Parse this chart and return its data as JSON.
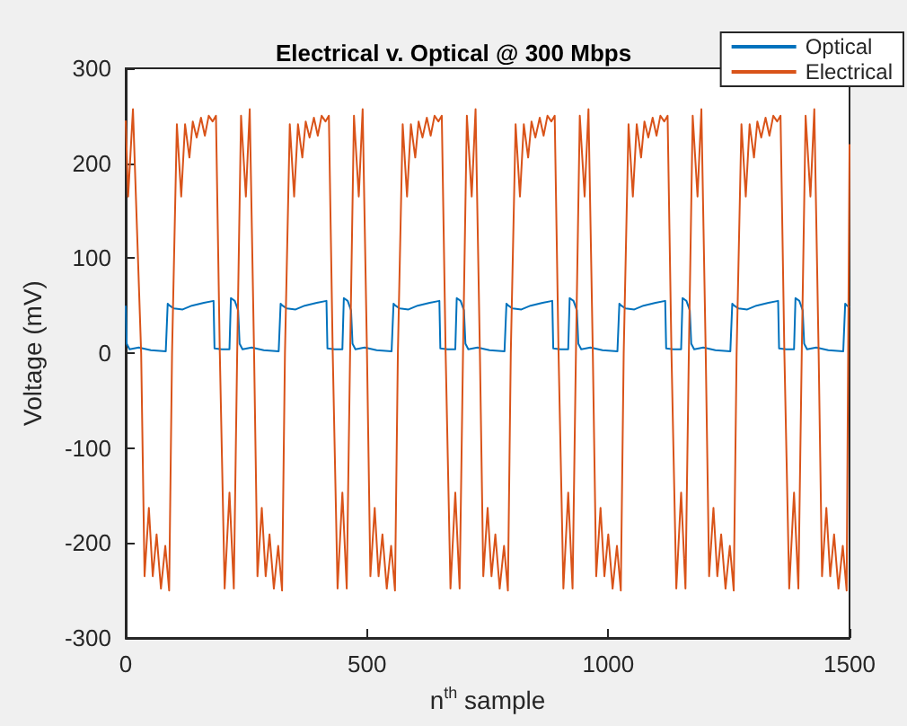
{
  "chart_data": {
    "type": "line",
    "title": "Electrical v. Optical @ 300 Mbps",
    "xlabel": "n$^{th}$ sample",
    "ylabel": "Voltage (mV)",
    "xlim": [
      0,
      1500
    ],
    "xticks": [
      0,
      500,
      1000,
      1500
    ],
    "ylim": [
      -300,
      300
    ],
    "yticks": [
      -300,
      -200,
      -100,
      0,
      100,
      200,
      300
    ],
    "grid": false,
    "legend": "top right",
    "series": [
      {
        "name": "Optical",
        "color": "#0072bd",
        "x": [
          0,
          2,
          8,
          27,
          52,
          83,
          87,
          91,
          100,
          118,
          137,
          162,
          182,
          184,
          199,
          215,
          218,
          226,
          233,
          236,
          242,
          261,
          286,
          317,
          321,
          325,
          334,
          352,
          371,
          396,
          416,
          418,
          433,
          449,
          452,
          460,
          467,
          470,
          476,
          495,
          520,
          551,
          555,
          559,
          568,
          586,
          605,
          630,
          650,
          652,
          667,
          683,
          686,
          694,
          701,
          704,
          710,
          729,
          754,
          785,
          789,
          793,
          802,
          820,
          839,
          864,
          884,
          886,
          901,
          917,
          920,
          928,
          935,
          938,
          944,
          963,
          988,
          1019,
          1023,
          1027,
          1036,
          1054,
          1073,
          1098,
          1118,
          1120,
          1135,
          1151,
          1154,
          1162,
          1169,
          1172,
          1178,
          1197,
          1222,
          1253,
          1257,
          1261,
          1270,
          1288,
          1307,
          1332,
          1352,
          1354,
          1369,
          1385,
          1388,
          1396,
          1403,
          1406,
          1412,
          1431,
          1456,
          1487,
          1491,
          1495,
          1500
        ],
        "values": [
          50,
          10,
          4,
          6,
          3,
          2,
          52,
          50,
          47,
          46,
          50,
          53,
          55,
          5,
          4,
          4,
          58,
          55,
          45,
          10,
          4,
          6,
          3,
          2,
          52,
          50,
          47,
          46,
          50,
          53,
          55,
          5,
          4,
          4,
          58,
          55,
          45,
          10,
          4,
          6,
          3,
          2,
          52,
          50,
          47,
          46,
          50,
          53,
          55,
          5,
          4,
          4,
          58,
          55,
          45,
          10,
          4,
          6,
          3,
          2,
          52,
          50,
          47,
          46,
          50,
          53,
          55,
          5,
          4,
          4,
          58,
          55,
          45,
          10,
          4,
          6,
          3,
          2,
          52,
          50,
          47,
          46,
          50,
          53,
          55,
          5,
          4,
          4,
          58,
          55,
          45,
          10,
          4,
          6,
          3,
          2,
          52,
          50,
          47,
          46,
          50,
          53,
          55,
          5,
          4,
          4,
          58,
          55,
          45,
          10,
          4,
          6,
          3,
          2,
          52,
          50,
          48
        ]
      },
      {
        "name": "Electrical",
        "color": "#d95319",
        "x": [
          0,
          5,
          15,
          32,
          39,
          48,
          56,
          64,
          73,
          82,
          90,
          96,
          106,
          115,
          123,
          132,
          139,
          147,
          156,
          164,
          172,
          180,
          187,
          195,
          205,
          215,
          224,
          231,
          239,
          249,
          257,
          266,
          273,
          282,
          290,
          298,
          307,
          316,
          324,
          330,
          340,
          349,
          357,
          366,
          373,
          381,
          390,
          398,
          406,
          414,
          421,
          429,
          439,
          449,
          458,
          465,
          473,
          483,
          491,
          500,
          507,
          516,
          524,
          532,
          541,
          550,
          558,
          564,
          574,
          583,
          591,
          600,
          607,
          615,
          624,
          632,
          640,
          648,
          655,
          663,
          673,
          683,
          692,
          699,
          707,
          717,
          725,
          734,
          741,
          750,
          758,
          766,
          775,
          784,
          792,
          798,
          808,
          817,
          825,
          834,
          841,
          849,
          858,
          866,
          874,
          882,
          889,
          897,
          907,
          917,
          926,
          933,
          941,
          951,
          959,
          968,
          975,
          984,
          992,
          1000,
          1009,
          1018,
          1026,
          1032,
          1042,
          1051,
          1059,
          1068,
          1075,
          1083,
          1092,
          1100,
          1108,
          1116,
          1123,
          1131,
          1141,
          1151,
          1160,
          1167,
          1175,
          1185,
          1193,
          1202,
          1209,
          1218,
          1226,
          1234,
          1243,
          1252,
          1260,
          1266,
          1276,
          1285,
          1293,
          1302,
          1309,
          1317,
          1326,
          1334,
          1342,
          1350,
          1357,
          1365,
          1375,
          1385,
          1394,
          1401,
          1409,
          1419,
          1427,
          1436,
          1443,
          1452,
          1460,
          1468,
          1477,
          1486,
          1494,
          1500
        ],
        "values": [
          245,
          165,
          257,
          0,
          -235,
          -163,
          -235,
          -191,
          -248,
          -203,
          -250,
          0,
          241,
          165,
          241,
          206,
          244,
          227,
          248,
          229,
          250,
          244,
          250,
          0,
          -248,
          -147,
          -248,
          0,
          250,
          165,
          257,
          0,
          -235,
          -163,
          -235,
          -191,
          -248,
          -203,
          -250,
          0,
          241,
          165,
          241,
          206,
          244,
          227,
          248,
          229,
          250,
          244,
          250,
          0,
          -248,
          -147,
          -248,
          0,
          250,
          165,
          257,
          0,
          -235,
          -163,
          -235,
          -191,
          -248,
          -203,
          -250,
          0,
          241,
          165,
          241,
          206,
          244,
          227,
          248,
          229,
          250,
          244,
          250,
          0,
          -248,
          -147,
          -248,
          0,
          250,
          165,
          257,
          0,
          -235,
          -163,
          -235,
          -191,
          -248,
          -203,
          -250,
          0,
          241,
          165,
          241,
          206,
          244,
          227,
          248,
          229,
          250,
          244,
          250,
          0,
          -248,
          -147,
          -248,
          0,
          250,
          165,
          257,
          0,
          -235,
          -163,
          -235,
          -191,
          -248,
          -203,
          -250,
          0,
          241,
          165,
          241,
          206,
          244,
          227,
          248,
          229,
          250,
          244,
          250,
          0,
          -248,
          -147,
          -248,
          0,
          250,
          165,
          257,
          0,
          -235,
          -163,
          -235,
          -191,
          -248,
          -203,
          -250,
          0,
          241,
          165,
          241,
          206,
          244,
          227,
          248,
          229,
          250,
          244,
          250,
          0,
          -248,
          -147,
          -248,
          0,
          250,
          165,
          257,
          0,
          -235,
          -163,
          -235,
          -191,
          -248,
          -203,
          -250,
          220
        ]
      }
    ]
  }
}
